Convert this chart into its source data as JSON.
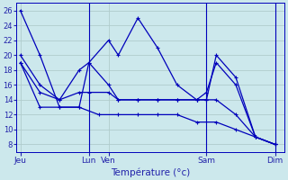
{
  "background_color": "#cce8ec",
  "grid_color": "#b0cccc",
  "line_color": "#0000bb",
  "tick_label_color": "#2222aa",
  "xlabel": "Température (°c)",
  "xlabel_color": "#2222aa",
  "ylim": [
    7,
    27
  ],
  "yticks": [
    8,
    10,
    12,
    14,
    16,
    18,
    20,
    22,
    24,
    26
  ],
  "xtick_positions": [
    0,
    3.5,
    4.5,
    9.5,
    13
  ],
  "xtick_labels": [
    "Jeu",
    "Lun",
    "Ven",
    "Sam",
    "Dim"
  ],
  "vline_positions": [
    3.5,
    9.5,
    13
  ],
  "series1_x": [
    0,
    1,
    2,
    3,
    3.5,
    4.5,
    5,
    6,
    7,
    8,
    9,
    9.5,
    10,
    11,
    12,
    13
  ],
  "series1_y": [
    26,
    20,
    13,
    13,
    19,
    22,
    20,
    25,
    21,
    16,
    14,
    14,
    20,
    17,
    9,
    8
  ],
  "series2_x": [
    0,
    1,
    2,
    3,
    3.5,
    4.5,
    5,
    6,
    7,
    8,
    9,
    9.5,
    10,
    11,
    12,
    13
  ],
  "series2_y": [
    20,
    16,
    14,
    18,
    19,
    16,
    14,
    14,
    14,
    14,
    14,
    15,
    19,
    16,
    9,
    8
  ],
  "series3_x": [
    0,
    1,
    2,
    3,
    3.5,
    4.5,
    5,
    6,
    7,
    8,
    9,
    9.5,
    10,
    11,
    12,
    13
  ],
  "series3_y": [
    19,
    15,
    14,
    15,
    15,
    15,
    14,
    14,
    14,
    14,
    14,
    14,
    14,
    12,
    9,
    8
  ],
  "series4_x": [
    0,
    1,
    2,
    3,
    4,
    5,
    6,
    7,
    8,
    9,
    10,
    11,
    12,
    13
  ],
  "series4_y": [
    19,
    13,
    13,
    13,
    12,
    12,
    12,
    12,
    12,
    11,
    11,
    10,
    9,
    8
  ],
  "xlim": [
    -0.2,
    13.5
  ]
}
